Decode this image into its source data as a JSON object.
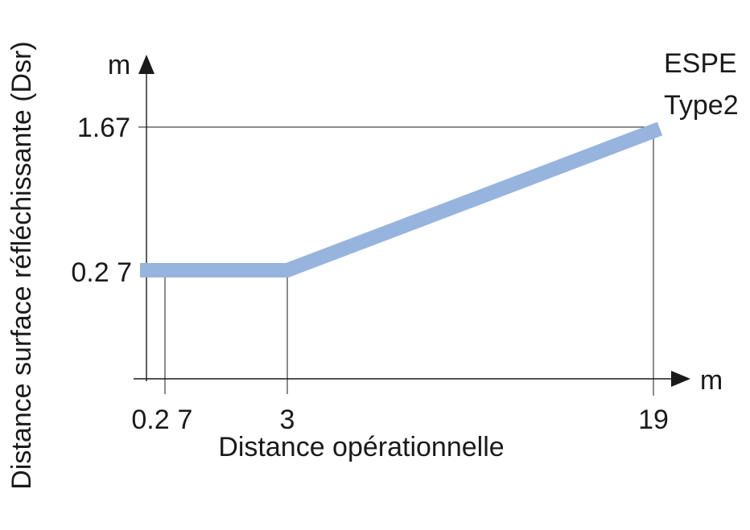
{
  "chart_data": {
    "type": "line",
    "title": "",
    "series_label": [
      "ESPE",
      "Type2"
    ],
    "xlabel": "Distance opérationnelle",
    "ylabel": "Distance surface réfléchissante (Dsr)",
    "x_unit": "m",
    "y_unit": "m",
    "x_ticks": [
      {
        "value": 0.2,
        "label": "0.2"
      },
      {
        "value": 3,
        "label": "3"
      },
      {
        "value": 19,
        "label": "19"
      }
    ],
    "x_tick_extra": "7",
    "y_ticks": [
      {
        "value": 0.27,
        "label": "0.2 7"
      },
      {
        "value": 1.67,
        "label": "1.67"
      }
    ],
    "points": [
      {
        "x": 0,
        "y": 0.27
      },
      {
        "x": 3,
        "y": 0.27
      },
      {
        "x": 19,
        "y": 1.67
      }
    ],
    "line_color": "#96b4dd",
    "axis_color": "#1a1a1a",
    "grid": false
  }
}
